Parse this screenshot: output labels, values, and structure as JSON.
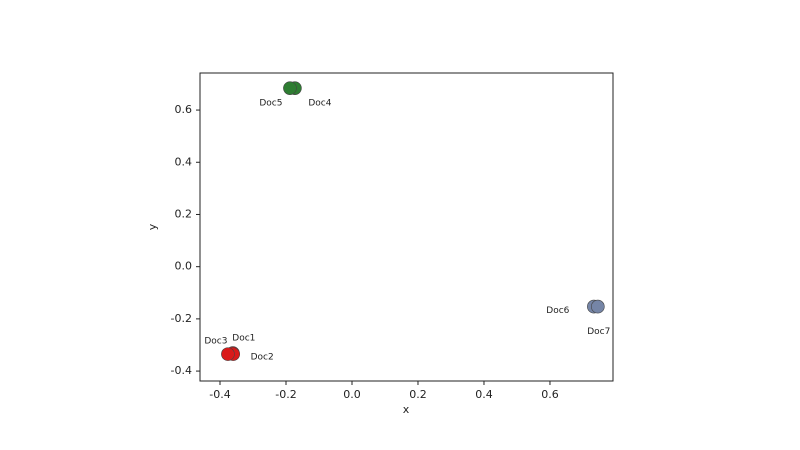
{
  "chart_data": {
    "type": "scatter",
    "x_label": "x",
    "y_label": "y",
    "x": [
      -0.361,
      -0.36,
      -0.376,
      -0.173,
      -0.188,
      0.733,
      0.745
    ],
    "values": [
      -0.331,
      -0.335,
      -0.335,
      0.684,
      0.684,
      -0.153,
      -0.153
    ],
    "point_labels": [
      "Doc1",
      "Doc2",
      "Doc3",
      "Doc4",
      "Doc5",
      "Doc6",
      "Doc7"
    ],
    "colors": [
      "#d91a1a",
      "#d91a1a",
      "#d91a1a",
      "#2e7d32",
      "#2e7d32",
      "#7585a6",
      "#7585a6"
    ],
    "xlim": [
      -0.4606,
      0.791
    ],
    "ylim": [
      -0.438,
      0.742
    ],
    "xticks": [
      -0.4,
      -0.2,
      {
        "value": 0,
        "label": "0.0"
      },
      0.2,
      0.4,
      0.6
    ],
    "yticks": [
      -0.4,
      -0.2,
      {
        "value": 0,
        "label": "0.0"
      },
      0.2,
      0.4,
      0.6
    ],
    "grid": false
  }
}
